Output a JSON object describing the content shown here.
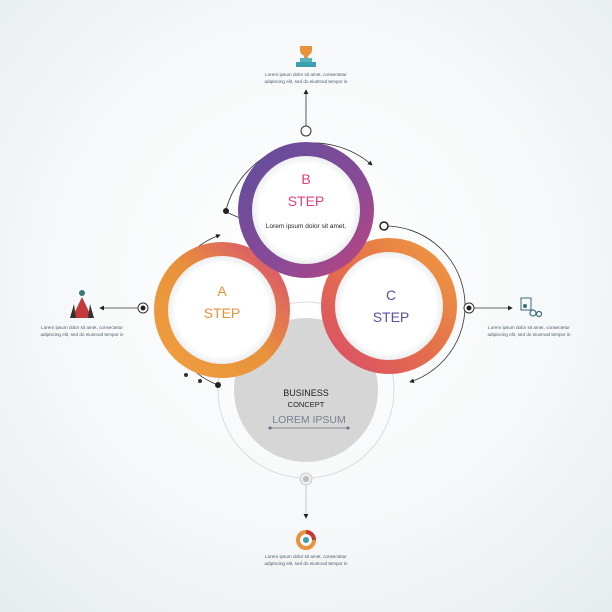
{
  "steps": {
    "a": {
      "letter": "A",
      "label": "STEP",
      "color": "#e8923a"
    },
    "b": {
      "letter": "B",
      "label": "STEP",
      "text": "Lorem ipsum dolor sit amet,",
      "color": "#e0407a"
    },
    "c": {
      "letter": "C",
      "label": "STEP",
      "color": "#5b4fa0"
    }
  },
  "center": {
    "line1": "BUSINESS",
    "line2": "CONCEPT",
    "line3": "LOREM IPSUM"
  },
  "captions": {
    "top": {
      "icon": "trophy-icon",
      "line1": "Lorem ipsum dolor sit amet, consectetur",
      "line2": "adipiscing elit, sed do eiusmod tempor in"
    },
    "left": {
      "icon": "rocket-icon",
      "line1": "Lorem ipsum dolor sit amet, consectetur",
      "line2": "adipiscing elit, sed do eiusmod tempor in"
    },
    "right": {
      "icon": "presentation-gears-icon",
      "line1": "Lorem ipsum dolor sit amet, consectetur",
      "line2": "adipiscing elit, sed do eiusmod tempor in"
    },
    "bottom": {
      "icon": "donut-chart-icon",
      "line1": "Lorem ipsum dolor sit amet, consectetur",
      "line2": "adipiscing elit, sed do eiusmod tempor in"
    }
  }
}
